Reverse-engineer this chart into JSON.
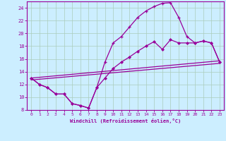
{
  "xlabel": "Windchill (Refroidissement éolien,°C)",
  "bg_color": "#cceeff",
  "line_color": "#990099",
  "grid_color": "#aaccbb",
  "xlim": [
    -0.5,
    23.5
  ],
  "ylim": [
    8,
    25
  ],
  "yticks": [
    8,
    10,
    12,
    14,
    16,
    18,
    20,
    22,
    24
  ],
  "xticks": [
    0,
    1,
    2,
    3,
    4,
    5,
    6,
    7,
    8,
    9,
    10,
    11,
    12,
    13,
    14,
    15,
    16,
    17,
    18,
    19,
    20,
    21,
    22,
    23
  ],
  "line1_x": [
    0,
    1,
    2,
    3,
    4,
    5,
    6,
    7,
    8,
    9,
    10,
    11,
    12,
    13,
    14,
    15,
    16,
    17,
    18,
    19,
    20,
    21,
    22,
    23
  ],
  "line1_y": [
    13,
    12,
    11.5,
    10.5,
    10.5,
    9.0,
    8.7,
    8.3,
    11.5,
    15.5,
    18.5,
    19.5,
    21.0,
    22.5,
    23.5,
    24.2,
    24.7,
    24.8,
    22.5,
    19.5,
    18.5,
    18.8,
    18.5,
    15.5
  ],
  "line2_x": [
    0,
    1,
    2,
    3,
    4,
    5,
    6,
    7,
    8,
    9,
    10,
    11,
    12,
    13,
    14,
    15,
    16,
    17,
    18,
    19,
    20,
    21,
    22,
    23
  ],
  "line2_y": [
    13,
    12,
    11.5,
    10.5,
    10.5,
    9.0,
    8.7,
    8.3,
    11.5,
    13.0,
    14.5,
    15.5,
    16.3,
    17.2,
    18.0,
    18.7,
    17.5,
    19.0,
    18.5,
    18.5,
    18.5,
    18.8,
    18.5,
    15.5
  ],
  "line3_x": [
    0,
    23
  ],
  "line3_y": [
    13,
    15.7
  ],
  "line4_x": [
    0,
    23
  ],
  "line4_y": [
    12.7,
    15.3
  ]
}
